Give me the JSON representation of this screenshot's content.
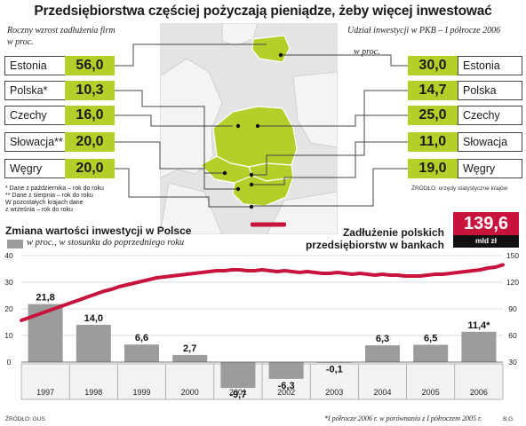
{
  "title": "Przedsiębiorstwa częściej pożyczają pieniądze, żeby więcej inwestować",
  "left_panel": {
    "heading_line1": "Roczny wzrost zadłużenia firm",
    "heading_line2": "w proc.",
    "rows": [
      {
        "country": "Estonia",
        "value": "56,0"
      },
      {
        "country": "Polska*",
        "value": "10,3"
      },
      {
        "country": "Czechy",
        "value": "16,0"
      },
      {
        "country": "Słowacja**",
        "value": "20,0"
      },
      {
        "country": "Węgry",
        "value": "20,0"
      }
    ],
    "footnotes": [
      "* Dane z października – rok do roku",
      "** Dane z sierpnia – rok do roku",
      "W pozostałych krajach dane",
      "z września – rok do roku"
    ]
  },
  "right_panel": {
    "heading_line1": "Udział inwestycji w PKB – I półrocze 2006",
    "heading_line2": "w proc.",
    "rows": [
      {
        "country": "Estonia",
        "value": "30,0"
      },
      {
        "country": "Polska",
        "value": "14,7"
      },
      {
        "country": "Czechy",
        "value": "25,0"
      },
      {
        "country": "Słowacja",
        "value": "11,0"
      },
      {
        "country": "Węgry",
        "value": "19,0"
      }
    ],
    "source": "ŹRÓDŁO: urzędy statystyczne krajów"
  },
  "bottom": {
    "title": "Zmiana wartości inwestycji w Polsce",
    "legend_bars": "w proc., w stosunku do poprzedniego roku",
    "debt_label_line1": "Zadłużenie polskich",
    "debt_label_line2": "przedsiębiorstw w bankach",
    "debt_value": "139,6",
    "debt_unit": "mld zł",
    "source": "ŹRÓDŁO: GUS",
    "footnote": "*I półrocze 2006 r. w porównaniu z I półroczem 2005 r.",
    "signature": "B.G."
  },
  "colors": {
    "accent_green": "#b5cf2a",
    "debt_line": "#c8143c",
    "bar_gray": "#9c9c9c"
  },
  "chart_data": [
    {
      "type": "bar",
      "categories": [
        "1997",
        "1998",
        "1999",
        "2000",
        "2001",
        "2002",
        "2003",
        "2004",
        "2005",
        "2006"
      ],
      "values": [
        21.8,
        14.0,
        6.6,
        2.7,
        -9.7,
        -6.3,
        -0.1,
        6.3,
        6.5,
        11.4
      ],
      "value_labels": [
        "21,8",
        "14,0",
        "6,6",
        "2,7",
        "-9,7",
        "-6,3",
        "-0,1",
        "6,3",
        "6,5",
        "11,4*"
      ],
      "y_ticks": [
        "40",
        "30",
        "20",
        "10",
        "0"
      ],
      "ylim": [
        -10,
        40
      ]
    },
    {
      "type": "line",
      "series": [
        {
          "name": "Zadłużenie polskich przedsiębiorstw w bankach",
          "values": [
            77,
            80,
            83,
            86,
            89,
            92,
            95,
            98,
            101,
            104,
            107,
            110,
            112,
            115,
            117,
            119,
            121,
            123,
            125,
            126,
            127,
            128,
            129,
            130,
            131,
            132,
            133,
            133,
            134,
            134,
            133,
            133,
            134,
            133,
            132,
            133,
            132,
            131,
            132,
            131,
            130,
            130,
            131,
            130,
            129,
            130,
            129,
            128,
            129,
            128,
            128,
            127,
            127,
            127,
            128,
            129,
            129,
            130,
            131,
            132,
            133,
            134,
            136,
            137,
            139.6
          ]
        }
      ],
      "y_ticks": [
        "150",
        "120",
        "90",
        "60",
        "30"
      ],
      "ylim": [
        30,
        150
      ]
    }
  ]
}
